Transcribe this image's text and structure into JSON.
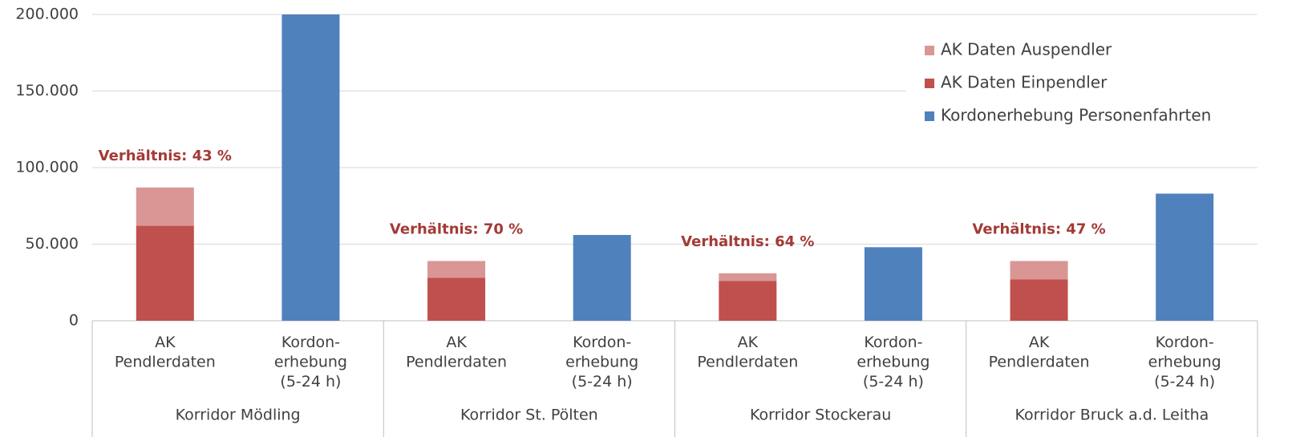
{
  "chart_data": {
    "type": "bar",
    "categories": [
      [
        "AK",
        "Pendlerdaten"
      ],
      [
        "Kordon-",
        "erhebung",
        "(5-24 h)"
      ],
      [
        "AK",
        "Pendlerdaten"
      ],
      [
        "Kordon-",
        "erhebung",
        "(5-24 h)"
      ],
      [
        "AK",
        "Pendlerdaten"
      ],
      [
        "Kordon-",
        "erhebung",
        "(5-24 h)"
      ],
      [
        "AK",
        "Pendlerdaten"
      ],
      [
        "Kordon-",
        "erhebung",
        "(5-24 h)"
      ]
    ],
    "groups": [
      "Korridor Mödling",
      "Korridor St. Pölten",
      "Korridor Stockerau",
      "Korridor Bruck a.d. Leitha"
    ],
    "series": [
      {
        "name": "AK Daten Auspendler",
        "color": "#d99694",
        "values": [
          25000,
          null,
          11000,
          null,
          5000,
          null,
          12000,
          null
        ]
      },
      {
        "name": "AK Daten Einpendler",
        "color": "#c0504d",
        "values": [
          62000,
          null,
          28000,
          null,
          26000,
          null,
          27000,
          null
        ]
      },
      {
        "name": "Kordonerhebung Personenfahrten",
        "color": "#4f81bd",
        "values": [
          null,
          200000,
          null,
          56000,
          null,
          48000,
          null,
          83000
        ]
      }
    ],
    "stack_order": [
      1,
      0
    ],
    "annotations": [
      "Verhältnis: 43 %",
      "Verhältnis: 70 %",
      "Verhältnis: 64 %",
      "Verhältnis: 47 %"
    ],
    "annotation_color": "#a33a36",
    "ylim": [
      0,
      200000
    ],
    "yticks": [
      0,
      {
        "value": 50000,
        "label": "50.000"
      },
      {
        "value": 100000,
        "label": "100.000"
      },
      {
        "value": 150000,
        "label": "150.000"
      },
      {
        "value": 200000,
        "label": "200.000"
      }
    ],
    "grid": true,
    "legend": "upper right"
  }
}
